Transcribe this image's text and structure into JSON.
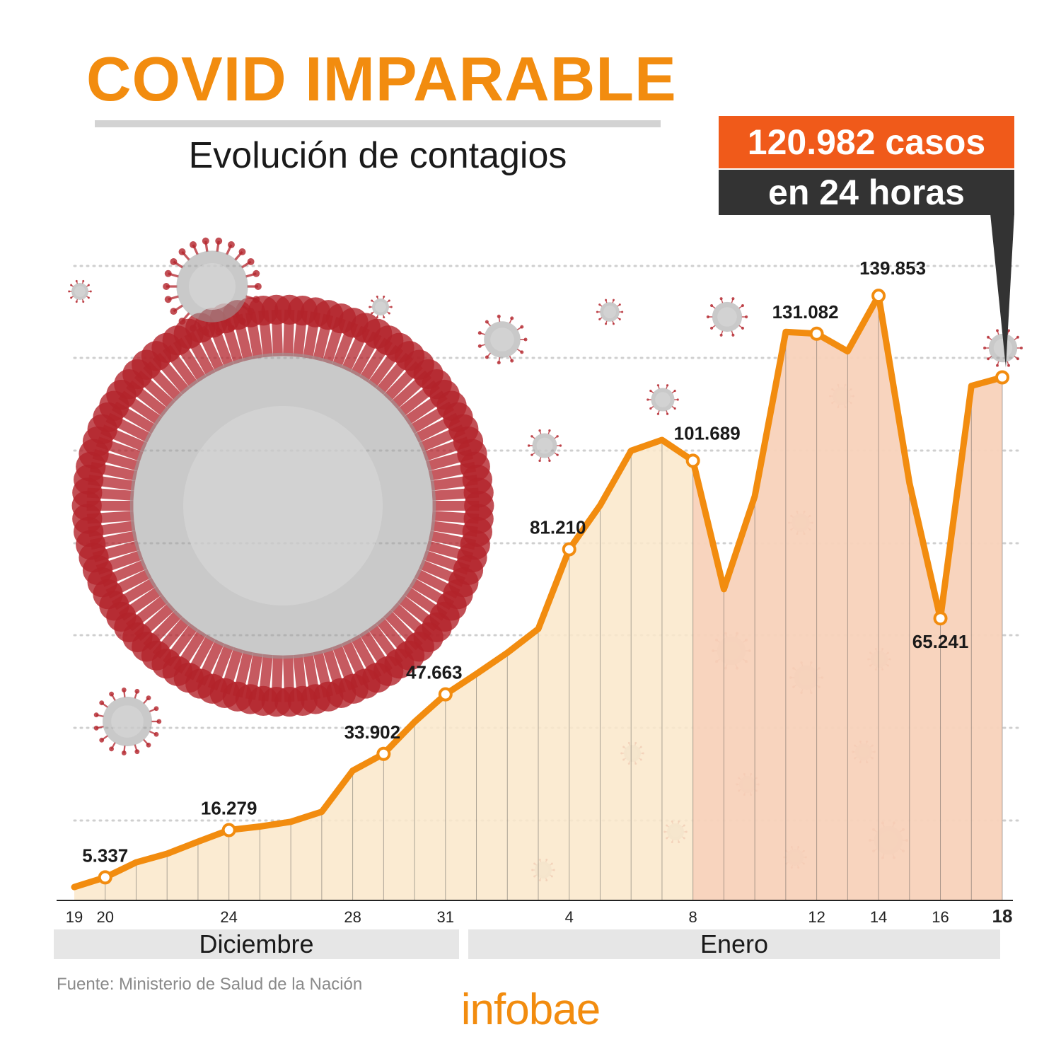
{
  "header": {
    "title": "COVID IMPARABLE",
    "subtitle": "Evolución de contagios"
  },
  "callout": {
    "line1": "120.982 casos",
    "line2": "en 24 horas"
  },
  "months": {
    "dec": "Diciembre",
    "jan": "Enero"
  },
  "source": "Fuente: Ministerio de Salud de la Nación",
  "logo": "infobae",
  "colors": {
    "line": "#f28c0f",
    "fill_light": "#fbe8cc",
    "fill_dark": "#f7cbb5",
    "callout_orange": "#f05a1a",
    "callout_dark": "#333333",
    "virus_spike": "#b3232b",
    "virus_body": "#9c9c9c"
  },
  "chart_data": {
    "type": "area",
    "x_dates": [
      "19 dic",
      "20 dic",
      "21 dic",
      "22 dic",
      "23 dic",
      "24 dic",
      "25 dic",
      "26 dic",
      "27 dic",
      "28 dic",
      "29 dic",
      "30 dic",
      "31 dic",
      "1 ene",
      "2 ene",
      "3 ene",
      "4 ene",
      "5 ene",
      "6 ene",
      "7 ene",
      "8 ene",
      "9 ene",
      "10 ene",
      "11 ene",
      "12 ene",
      "13 ene",
      "14 ene",
      "15 ene",
      "16 ene",
      "17 ene",
      "18 ene"
    ],
    "tick_labels": [
      {
        "index": 0,
        "label": "19"
      },
      {
        "index": 1,
        "label": "20"
      },
      {
        "index": 5,
        "label": "24"
      },
      {
        "index": 9,
        "label": "28"
      },
      {
        "index": 12,
        "label": "31"
      },
      {
        "index": 16,
        "label": "4"
      },
      {
        "index": 20,
        "label": "8"
      },
      {
        "index": 24,
        "label": "12"
      },
      {
        "index": 26,
        "label": "14"
      },
      {
        "index": 28,
        "label": "16"
      },
      {
        "index": 30,
        "label": "18",
        "bold": true
      }
    ],
    "values": [
      3100,
      5337,
      8800,
      10800,
      13600,
      16279,
      17100,
      18200,
      20500,
      30000,
      33902,
      41300,
      47663,
      52400,
      57300,
      62800,
      81210,
      91400,
      104000,
      106500,
      101689,
      72000,
      93500,
      131500,
      131082,
      127000,
      139853,
      96500,
      65241,
      119000,
      120982
    ],
    "data_labels": [
      {
        "index": 1,
        "label": "5.337",
        "pos": "above"
      },
      {
        "index": 5,
        "label": "16.279",
        "pos": "above"
      },
      {
        "index": 10,
        "label": "33.902",
        "pos": "above-left"
      },
      {
        "index": 12,
        "label": "47.663",
        "pos": "above-left"
      },
      {
        "index": 16,
        "label": "81.210",
        "pos": "above-left"
      },
      {
        "index": 20,
        "label": "101.689",
        "pos": "above-right"
      },
      {
        "index": 24,
        "label": "131.082",
        "pos": "above-left"
      },
      {
        "index": 26,
        "label": "139.853",
        "pos": "above-right"
      },
      {
        "index": 28,
        "label": "65.241",
        "pos": "below"
      }
    ],
    "ylim": [
      0,
      160000
    ],
    "grid": true
  }
}
